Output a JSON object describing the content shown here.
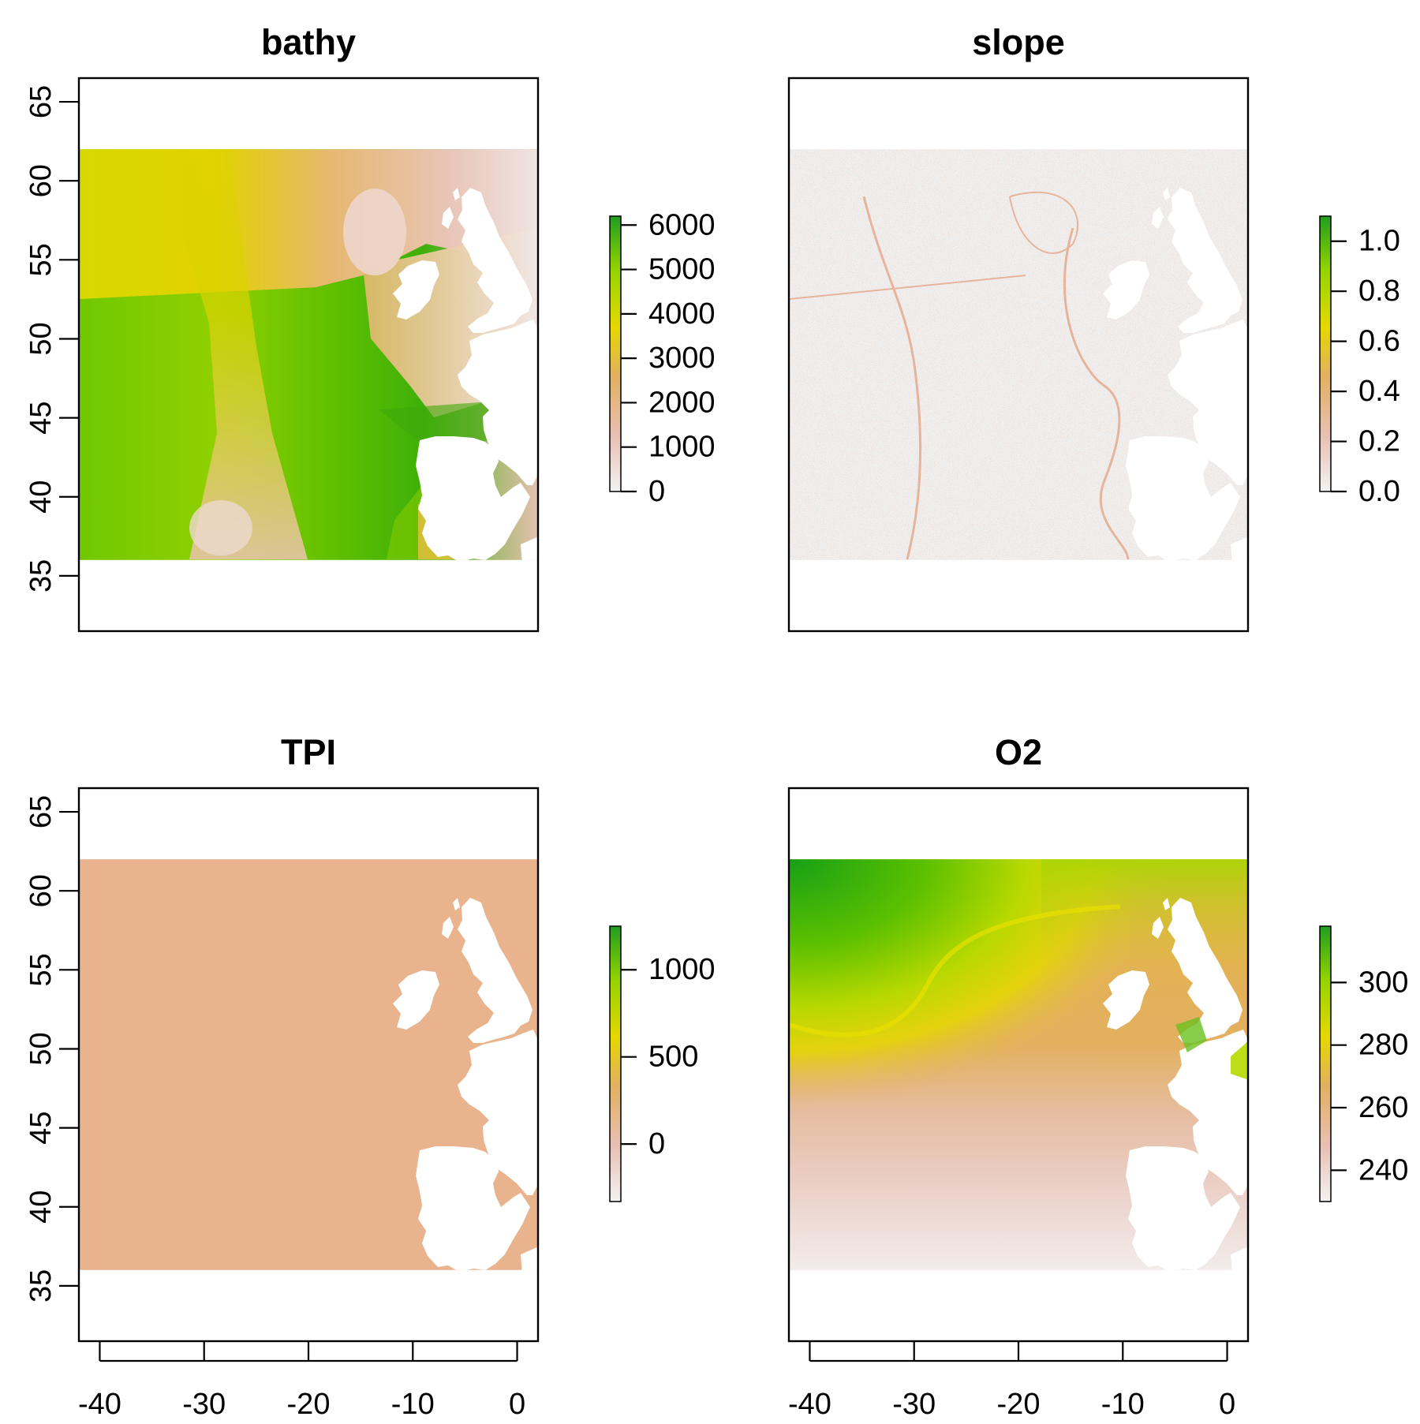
{
  "figure": {
    "colors": {
      "ramp": [
        "#f2f2f2",
        "#e8c0b4",
        "#e3b060",
        "#e5d800",
        "#96d400",
        "#1f9e1f"
      ],
      "land": "#ffffff",
      "frame": "#000000"
    },
    "map_extent": {
      "lon_range": [
        -40,
        2
      ],
      "lat_range": [
        36,
        62
      ]
    }
  },
  "chart_data": [
    {
      "type": "heatmap",
      "panel": "bathy",
      "title": "bathy",
      "xlabel": "",
      "ylabel": "",
      "xlim": [
        -42,
        2
      ],
      "ylim": [
        31.5,
        66.5
      ],
      "x_ticks": [
        -40,
        -30,
        -20,
        -10,
        0
      ],
      "y_ticks": [
        35,
        40,
        45,
        50,
        55,
        60,
        65
      ],
      "show_x_axis": false,
      "show_y_axis": true,
      "legend": {
        "range": [
          0,
          6200
        ],
        "ticks": [
          0,
          1000,
          2000,
          3000,
          4000,
          5000,
          6000
        ],
        "tick_labels": [
          "0",
          "1000",
          "2000",
          "3000",
          "4000",
          "5000",
          "6000"
        ]
      }
    },
    {
      "type": "heatmap",
      "panel": "slope",
      "title": "slope",
      "xlabel": "",
      "ylabel": "",
      "xlim": [
        -42,
        2
      ],
      "ylim": [
        31.5,
        66.5
      ],
      "x_ticks": [
        -40,
        -30,
        -20,
        -10,
        0
      ],
      "y_ticks": [
        35,
        40,
        45,
        50,
        55,
        60,
        65
      ],
      "show_x_axis": false,
      "show_y_axis": false,
      "legend": {
        "range": [
          0,
          1.1
        ],
        "ticks": [
          0.0,
          0.2,
          0.4,
          0.6,
          0.8,
          1.0
        ],
        "tick_labels": [
          "0.0",
          "0.2",
          "0.4",
          "0.6",
          "0.8",
          "1.0"
        ]
      }
    },
    {
      "type": "heatmap",
      "panel": "TPI",
      "title": "TPI",
      "xlabel": "",
      "ylabel": "",
      "xlim": [
        -42,
        2
      ],
      "ylim": [
        31.5,
        66.5
      ],
      "x_ticks": [
        -40,
        -30,
        -20,
        -10,
        0
      ],
      "y_ticks": [
        35,
        40,
        45,
        50,
        55,
        60,
        65
      ],
      "show_x_axis": true,
      "show_y_axis": true,
      "legend": {
        "range": [
          -330,
          1250
        ],
        "ticks": [
          0,
          500,
          1000
        ],
        "tick_labels": [
          "0",
          "500",
          "1000"
        ]
      }
    },
    {
      "type": "heatmap",
      "panel": "O2",
      "title": "O2",
      "xlabel": "",
      "ylabel": "",
      "xlim": [
        -42,
        2
      ],
      "ylim": [
        31.5,
        66.5
      ],
      "x_ticks": [
        -40,
        -30,
        -20,
        -10,
        0
      ],
      "y_ticks": [
        35,
        40,
        45,
        50,
        55,
        60,
        65
      ],
      "show_x_axis": true,
      "show_y_axis": false,
      "legend": {
        "range": [
          230,
          318
        ],
        "ticks": [
          240,
          260,
          280,
          300
        ],
        "tick_labels": [
          "240",
          "260",
          "280",
          "300"
        ]
      }
    }
  ]
}
